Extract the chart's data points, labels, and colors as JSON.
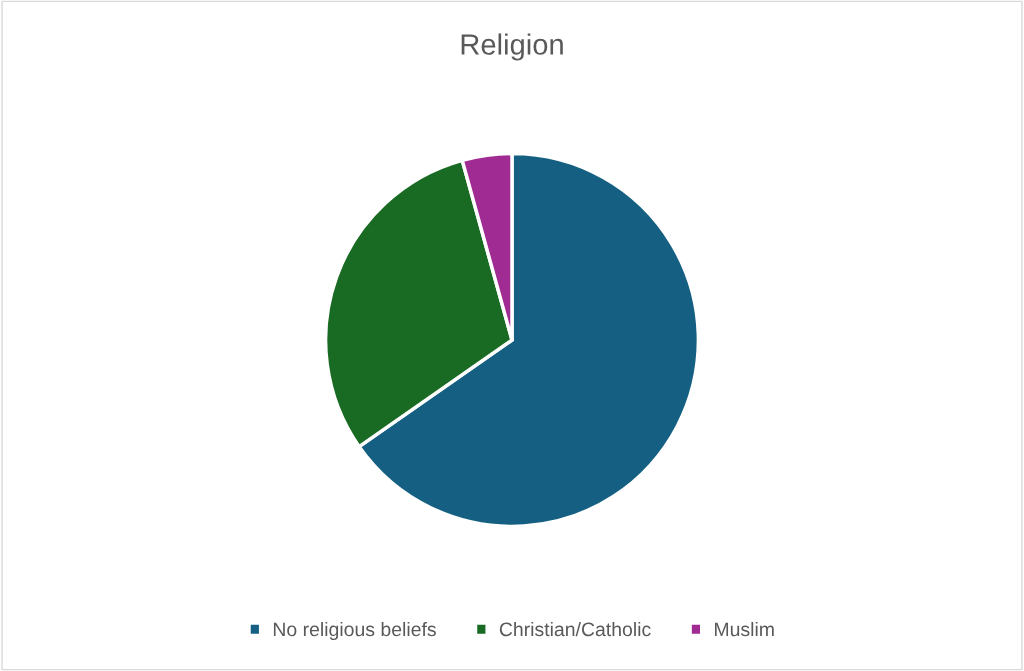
{
  "chart_data": {
    "type": "pie",
    "title": "Religion",
    "categories": [
      "No religious beliefs",
      "Christian/Catholic",
      "Muslim"
    ],
    "values": [
      65.3,
      30.4,
      4.3
    ],
    "colors": [
      "#156082",
      "#196b24",
      "#a02b93"
    ],
    "legend": "bottom"
  }
}
